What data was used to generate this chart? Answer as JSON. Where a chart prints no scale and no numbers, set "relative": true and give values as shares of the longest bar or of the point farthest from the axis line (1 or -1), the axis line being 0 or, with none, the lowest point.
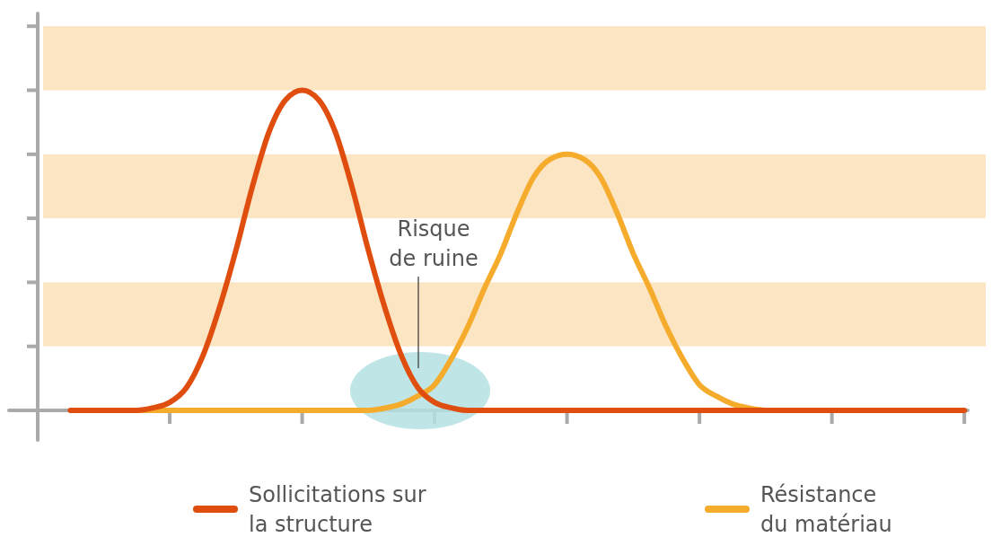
{
  "chart_data": {
    "type": "line",
    "relative": true,
    "categories": [
      null,
      null,
      null,
      null,
      null,
      null,
      null,
      null,
      null,
      null,
      null,
      null,
      null,
      null,
      null,
      null,
      null,
      null,
      null,
      null,
      null,
      null,
      null,
      null,
      null,
      null,
      null,
      null,
      null,
      null,
      null,
      null,
      null,
      null,
      null,
      null,
      null,
      null,
      null,
      null,
      null,
      null,
      null,
      null,
      null,
      null,
      null,
      null,
      null,
      null,
      null,
      null,
      null,
      null,
      null
    ],
    "series": [
      {
        "name": "Résistance du matériau",
        "color": "#f5ab2c",
        "values": [
          null,
          null,
          null,
          null,
          0,
          0,
          0,
          0,
          0,
          0,
          0,
          0,
          0,
          0,
          0,
          0,
          0,
          0,
          0,
          0.007,
          0.02,
          0.045,
          0.08,
          0.16,
          0.26,
          0.38,
          0.49,
          0.62,
          0.73,
          0.785,
          0.8,
          0.785,
          0.73,
          0.62,
          0.49,
          0.38,
          0.26,
          0.16,
          0.08,
          0.045,
          0.02,
          0.007,
          0,
          0,
          null,
          null,
          null,
          null,
          null,
          null,
          null,
          null,
          null,
          null,
          null
        ]
      },
      {
        "name": "Sollicitations sur la structure",
        "color": "#e04e0f",
        "values": [
          0,
          0,
          0,
          0,
          0,
          0.008,
          0.025,
          0.07,
          0.17,
          0.32,
          0.5,
          0.7,
          0.87,
          0.97,
          1,
          0.97,
          0.87,
          0.7,
          0.5,
          0.32,
          0.17,
          0.07,
          0.025,
          0.008,
          0,
          0,
          0,
          0,
          0,
          0,
          0,
          0,
          0,
          0,
          0,
          0,
          0,
          0,
          0,
          0,
          0,
          0,
          0,
          0,
          0,
          0,
          0,
          0,
          0,
          0,
          0,
          0,
          0,
          0,
          0
        ]
      }
    ],
    "bands": [
      {
        "axis": "y",
        "from": 0.2,
        "to": 0.4,
        "color": "#fce5c3"
      },
      {
        "axis": "y",
        "from": 0.6,
        "to": 0.8,
        "color": "#fce5c3"
      },
      {
        "axis": "y",
        "from": 1.0,
        "to": 1.2,
        "color": "#fce5c3"
      }
    ],
    "annotations": [
      "Risque de ruine"
    ],
    "legend": "bottom",
    "grid": false,
    "marker": "none",
    "line_style": "solid"
  }
}
